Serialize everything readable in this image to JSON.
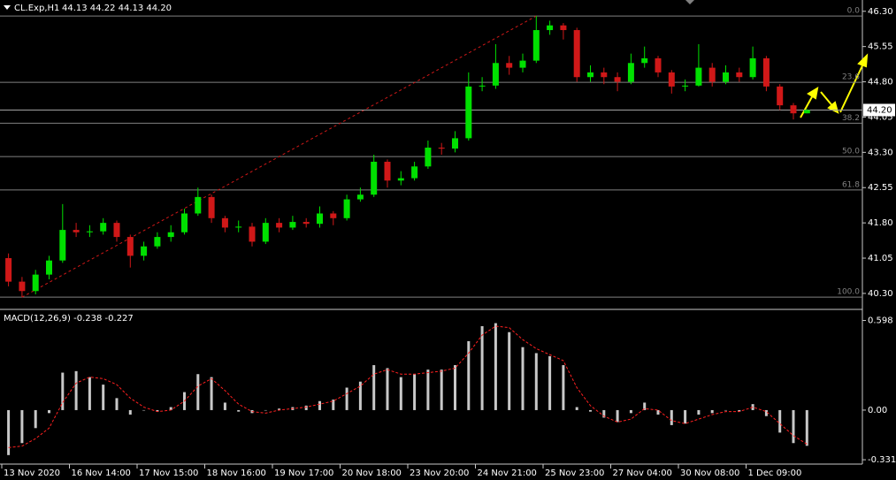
{
  "chart_data": [
    {
      "type": "candlestick",
      "title": "CL.Exp,H1",
      "ohlc_header": "44.13 44.22 44.13 44.20",
      "categories": [
        "13 Nov 2020",
        null,
        null,
        null,
        null,
        "16 Nov 14:00",
        null,
        null,
        null,
        null,
        "17 Nov 15:00",
        null,
        null,
        null,
        null,
        "18 Nov 16:00",
        null,
        null,
        null,
        null,
        "19 Nov 17:00",
        null,
        null,
        null,
        null,
        "20 Nov 18:00",
        null,
        null,
        null,
        null,
        "23 Nov 20:00",
        null,
        null,
        null,
        null,
        "24 Nov 21:00",
        null,
        null,
        null,
        null,
        "25 Nov 23:00",
        null,
        null,
        null,
        null,
        "27 Nov 04:00",
        null,
        null,
        null,
        null,
        "30 Nov 08:00",
        null,
        null,
        null,
        null,
        "1 Dec 09:00",
        null,
        null,
        null,
        null
      ],
      "open": [
        41.05,
        40.55,
        40.35,
        40.7,
        41.0,
        41.65,
        41.6,
        41.62,
        41.8,
        41.5,
        41.1,
        41.3,
        41.5,
        41.6,
        42.0,
        42.35,
        41.9,
        41.7,
        41.72,
        41.4,
        41.8,
        41.7,
        41.82,
        41.78,
        42.0,
        41.9,
        42.3,
        42.4,
        43.1,
        42.7,
        42.75,
        43.0,
        43.4,
        43.38,
        43.6,
        44.7,
        44.72,
        45.2,
        45.1,
        45.25,
        45.9,
        46.0,
        45.9,
        44.9,
        45.0,
        44.9,
        44.8,
        45.2,
        45.3,
        45.0,
        44.7,
        44.72,
        45.1,
        44.8,
        45.0,
        44.9,
        45.3,
        44.7,
        44.3,
        44.13
      ],
      "high": [
        41.15,
        40.65,
        40.8,
        41.1,
        42.2,
        41.8,
        41.75,
        41.9,
        41.85,
        41.55,
        41.4,
        41.6,
        41.75,
        42.1,
        42.55,
        42.4,
        41.95,
        41.85,
        41.8,
        41.9,
        41.9,
        41.95,
        41.9,
        42.15,
        42.05,
        42.4,
        42.55,
        43.25,
        43.15,
        42.9,
        43.1,
        43.55,
        43.5,
        43.75,
        45.0,
        44.9,
        45.6,
        45.35,
        45.4,
        46.2,
        46.1,
        46.05,
        45.95,
        45.15,
        45.1,
        45.0,
        45.4,
        45.55,
        45.35,
        45.05,
        44.85,
        45.6,
        45.2,
        45.15,
        45.1,
        45.55,
        45.35,
        44.75,
        44.35,
        44.22
      ],
      "low": [
        40.45,
        40.22,
        40.28,
        40.6,
        40.95,
        41.5,
        41.5,
        41.55,
        41.4,
        40.85,
        41.0,
        41.25,
        41.4,
        41.55,
        41.95,
        41.8,
        41.6,
        41.6,
        41.3,
        41.35,
        41.6,
        41.65,
        41.7,
        41.7,
        41.75,
        41.85,
        42.25,
        42.35,
        42.55,
        42.6,
        42.7,
        42.95,
        43.25,
        43.3,
        43.55,
        44.6,
        44.65,
        44.95,
        45.0,
        45.2,
        45.8,
        45.7,
        44.8,
        44.8,
        44.75,
        44.6,
        44.75,
        45.1,
        44.9,
        44.55,
        44.6,
        44.7,
        44.7,
        44.75,
        44.8,
        44.85,
        44.6,
        44.2,
        44.0,
        44.13
      ],
      "close": [
        40.55,
        40.35,
        40.7,
        41.0,
        41.65,
        41.6,
        41.62,
        41.8,
        41.5,
        41.1,
        41.3,
        41.5,
        41.6,
        42.0,
        42.35,
        41.9,
        41.7,
        41.72,
        41.4,
        41.8,
        41.7,
        41.82,
        41.78,
        42.0,
        41.9,
        42.3,
        42.4,
        43.1,
        42.7,
        42.75,
        43.0,
        43.4,
        43.38,
        43.6,
        44.7,
        44.72,
        45.2,
        45.1,
        45.25,
        45.9,
        46.0,
        45.9,
        44.9,
        45.0,
        44.9,
        44.8,
        45.2,
        45.3,
        45.0,
        44.7,
        44.72,
        45.1,
        44.8,
        45.0,
        44.9,
        45.3,
        44.7,
        44.3,
        44.13,
        44.2
      ],
      "up_color": "#00e000",
      "down_color": "#d01818",
      "ylim": [
        39.96,
        46.54
      ],
      "yticks": [
        {
          "value": 46.3,
          "label": "46.30"
        },
        {
          "value": 45.55,
          "label": "45.55"
        },
        {
          "value": 44.8,
          "label": "44.80"
        },
        {
          "value": 44.05,
          "label": "44.05"
        },
        {
          "value": 43.3,
          "label": "43.30"
        },
        {
          "value": 42.55,
          "label": "42.55"
        },
        {
          "value": 41.8,
          "label": "41.80"
        },
        {
          "value": 41.05,
          "label": "41.05"
        },
        {
          "value": 40.3,
          "label": "40.30"
        }
      ],
      "current_price": {
        "value": 44.2,
        "label": "44.20"
      },
      "fib_levels": [
        {
          "label": "0.0",
          "value": 46.2
        },
        {
          "label": "23.6",
          "value": 44.79
        },
        {
          "label": "38.2",
          "value": 43.92
        },
        {
          "label": "50.0",
          "value": 43.21
        },
        {
          "label": "61.8",
          "value": 42.5
        },
        {
          "label": "100.0",
          "value": 40.22
        }
      ],
      "trendline_color": "#d01818"
    },
    {
      "type": "macd",
      "title": "MACD(12,26,9) -0.238 -0.227",
      "series": [
        {
          "name": "MACD",
          "color": "#c8c8c8",
          "values": [
            -0.3,
            -0.22,
            -0.12,
            -0.02,
            0.25,
            0.26,
            0.22,
            0.17,
            0.08,
            -0.03,
            0.0,
            -0.01,
            0.02,
            0.12,
            0.24,
            0.22,
            0.05,
            -0.01,
            -0.02,
            0.0,
            0.01,
            0.02,
            0.03,
            0.06,
            0.07,
            0.15,
            0.19,
            0.3,
            0.28,
            0.22,
            0.24,
            0.27,
            0.27,
            0.3,
            0.46,
            0.56,
            0.58,
            0.52,
            0.42,
            0.38,
            0.36,
            0.3,
            0.02,
            -0.01,
            -0.05,
            -0.08,
            -0.02,
            0.05,
            -0.03,
            -0.1,
            -0.09,
            -0.03,
            -0.02,
            0.0,
            -0.01,
            0.04,
            -0.04,
            -0.15,
            -0.22,
            -0.238
          ]
        },
        {
          "name": "Signal",
          "color": "#ff2020",
          "values": [
            -0.25,
            -0.24,
            -0.19,
            -0.12,
            0.05,
            0.18,
            0.22,
            0.21,
            0.17,
            0.08,
            0.02,
            -0.01,
            0.0,
            0.06,
            0.16,
            0.21,
            0.13,
            0.04,
            -0.01,
            -0.02,
            0.0,
            0.01,
            0.02,
            0.04,
            0.06,
            0.11,
            0.16,
            0.24,
            0.27,
            0.24,
            0.24,
            0.25,
            0.26,
            0.28,
            0.38,
            0.5,
            0.56,
            0.55,
            0.47,
            0.41,
            0.37,
            0.33,
            0.15,
            0.03,
            -0.04,
            -0.08,
            -0.06,
            0.01,
            0.0,
            -0.07,
            -0.09,
            -0.06,
            -0.03,
            -0.01,
            -0.01,
            0.02,
            -0.01,
            -0.09,
            -0.17,
            -0.227
          ]
        }
      ],
      "ylim": [
        -0.36,
        0.66
      ],
      "yticks": [
        {
          "value": 0.598,
          "label": "0.598"
        },
        {
          "value": 0,
          "label": "0.00"
        },
        {
          "value": -0.331,
          "label": "-0.331"
        }
      ]
    }
  ]
}
